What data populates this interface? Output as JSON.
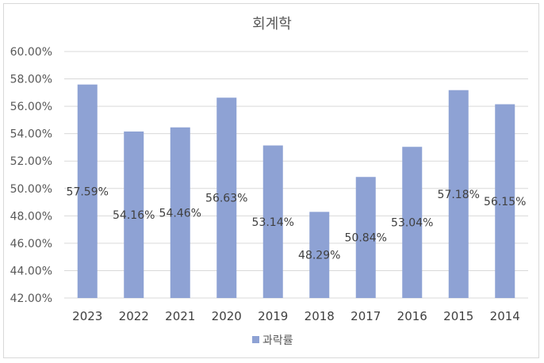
{
  "chart_data": {
    "type": "bar",
    "title": "회계학",
    "categories": [
      "2023",
      "2022",
      "2021",
      "2020",
      "2019",
      "2018",
      "2017",
      "2016",
      "2015",
      "2014"
    ],
    "series": [
      {
        "name": "과락률",
        "values": [
          57.59,
          54.16,
          54.46,
          56.63,
          53.14,
          48.29,
          50.84,
          53.04,
          57.18,
          56.15
        ],
        "labels": [
          "57.59%",
          "54.16%",
          "54.46%",
          "56.63%",
          "53.14%",
          "48.29%",
          "50.84%",
          "53.04%",
          "57.18%",
          "56.15%"
        ],
        "color": "#8ea2d4"
      }
    ],
    "ylim": [
      42,
      60
    ],
    "yticks": [
      60,
      58,
      56,
      54,
      52,
      50,
      48,
      46,
      44,
      42
    ],
    "ytick_labels": [
      "60.00%",
      "58.00%",
      "56.00%",
      "54.00%",
      "52.00%",
      "50.00%",
      "48.00%",
      "46.00%",
      "44.00%",
      "42.00%"
    ],
    "grid": true,
    "legend_position": "bottom"
  }
}
